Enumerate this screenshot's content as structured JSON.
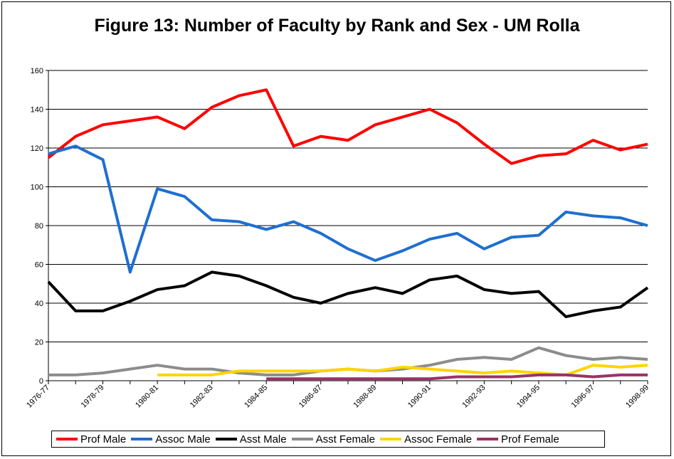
{
  "chart_data": {
    "type": "line",
    "title": "Figure 13: Number of Faculty by Rank and Sex - UM Rolla",
    "ylim": [
      0,
      160
    ],
    "yticks": [
      "0",
      "20",
      "40",
      "60",
      "80",
      "100",
      "120",
      "140",
      "160"
    ],
    "x": [
      "1976-77",
      "1977-78",
      "1978-79",
      "1979-80",
      "1980-81",
      "1981-82",
      "1982-83",
      "1983-84",
      "1984-85",
      "1985-86",
      "1986-87",
      "1987-88",
      "1988-89",
      "1989-90",
      "1990-91",
      "1991-92",
      "1992-93",
      "1993-94",
      "1994-95",
      "1995-96",
      "1996-97",
      "1997-98",
      "1998-99"
    ],
    "xtick_labels": [
      "1976-77",
      "1978-79",
      "1980-81",
      "1982-83",
      "1984-85",
      "1986-87",
      "1988-89",
      "1990-91",
      "1992-93",
      "1994-95",
      "1996-97",
      "1998-99"
    ],
    "grid": "horizontal",
    "legend_position": "bottom",
    "series": [
      {
        "name": "Prof Male",
        "color": "#ff0000",
        "values": [
          115,
          126,
          132,
          134,
          136,
          130,
          141,
          147,
          150,
          121,
          126,
          124,
          132,
          136,
          140,
          133,
          122,
          112,
          116,
          117,
          124,
          119,
          122
        ]
      },
      {
        "name": "Assoc Male",
        "color": "#1e6fd0",
        "values": [
          117,
          121,
          114,
          56,
          99,
          95,
          83,
          82,
          78,
          82,
          76,
          68,
          62,
          67,
          73,
          76,
          68,
          74,
          75,
          87,
          85,
          84,
          80
        ]
      },
      {
        "name": "Asst Male",
        "color": "#000000",
        "values": [
          51,
          36,
          36,
          41,
          47,
          49,
          56,
          54,
          49,
          43,
          40,
          45,
          48,
          45,
          52,
          54,
          47,
          45,
          46,
          33,
          36,
          38,
          48
        ]
      },
      {
        "name": "Asst Female",
        "color": "#8c8c8c",
        "values": [
          3,
          3,
          4,
          6,
          8,
          6,
          6,
          4,
          3,
          3,
          5,
          6,
          5,
          6,
          8,
          11,
          12,
          11,
          17,
          13,
          11,
          12,
          11
        ]
      },
      {
        "name": "Assoc Female",
        "color": "#ffd400",
        "values": [
          null,
          null,
          null,
          null,
          3,
          3,
          3,
          5,
          5,
          5,
          5,
          6,
          5,
          7,
          6,
          5,
          4,
          5,
          4,
          3,
          8,
          7,
          8
        ]
      },
      {
        "name": "Prof Female",
        "color": "#993366",
        "values": [
          null,
          null,
          null,
          null,
          null,
          null,
          null,
          null,
          1,
          1,
          1,
          1,
          1,
          1,
          1,
          2,
          2,
          2,
          3,
          3,
          2,
          3,
          3
        ]
      }
    ]
  }
}
